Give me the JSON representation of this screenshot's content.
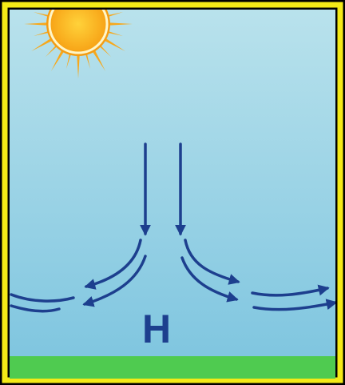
{
  "label": "H"
}
